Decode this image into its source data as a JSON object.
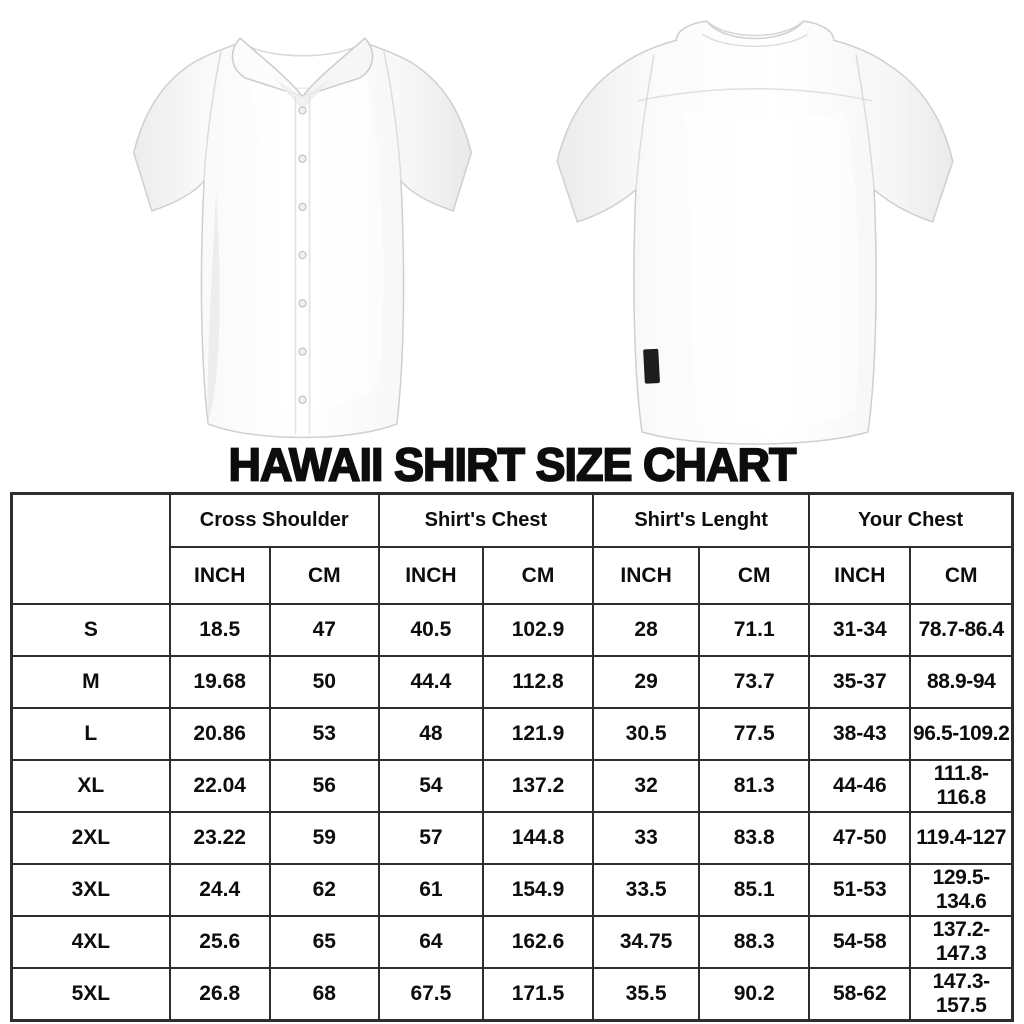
{
  "images": {
    "front_shirt": "white short-sleeve button-up shirt, front view",
    "back_shirt": "white short-sleeve button-up shirt, back view"
  },
  "size_chart": {
    "title": "HAWAII SHIRT SIZE CHART",
    "highlight_color": "#f0e832",
    "border_color": "#2e2e2e",
    "column_groups": [
      {
        "label": "Cross Shoulder"
      },
      {
        "label": "Shirt's Chest"
      },
      {
        "label": "Shirt's Lenght"
      },
      {
        "label": "Your Chest"
      }
    ],
    "unit_headers": {
      "inch": "INCH",
      "cm": "CM"
    },
    "rows": [
      {
        "size": "S",
        "values": [
          "18.5",
          "47",
          "40.5",
          "102.9",
          "28",
          "71.1",
          "31-34",
          "78.7-86.4"
        ]
      },
      {
        "size": "M",
        "values": [
          "19.68",
          "50",
          "44.4",
          "112.8",
          "29",
          "73.7",
          "35-37",
          "88.9-94"
        ]
      },
      {
        "size": "L",
        "values": [
          "20.86",
          "53",
          "48",
          "121.9",
          "30.5",
          "77.5",
          "38-43",
          "96.5-109.2"
        ]
      },
      {
        "size": "XL",
        "values": [
          "22.04",
          "56",
          "54",
          "137.2",
          "32",
          "81.3",
          "44-46",
          "111.8-116.8"
        ]
      },
      {
        "size": "2XL",
        "values": [
          "23.22",
          "59",
          "57",
          "144.8",
          "33",
          "83.8",
          "47-50",
          "119.4-127"
        ]
      },
      {
        "size": "3XL",
        "values": [
          "24.4",
          "62",
          "61",
          "154.9",
          "33.5",
          "85.1",
          "51-53",
          "129.5-134.6"
        ]
      },
      {
        "size": "4XL",
        "values": [
          "25.6",
          "65",
          "64",
          "162.6",
          "34.75",
          "88.3",
          "54-58",
          "137.2-147.3"
        ]
      },
      {
        "size": "5XL",
        "values": [
          "26.8",
          "68",
          "67.5",
          "171.5",
          "35.5",
          "90.2",
          "58-62",
          "147.3-157.5"
        ]
      }
    ]
  }
}
